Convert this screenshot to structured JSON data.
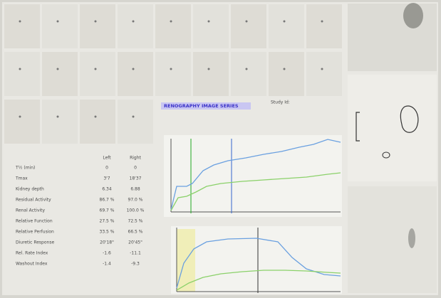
{
  "header": {
    "title": "RENOGRAPHY IMAGE SERIES",
    "study_id": "Study Id:"
  },
  "table": {
    "columns": [
      "Left",
      "Right"
    ],
    "rows": [
      [
        "T½ (min)",
        "0",
        "0"
      ],
      [
        "Tmax",
        "3'7",
        "18'37"
      ],
      [
        "Kidney depth",
        "6.34",
        "6.88"
      ],
      [
        "Residual Activity",
        "86.7 %",
        "97.0 %"
      ],
      [
        "Renal Activity",
        "69.7 %",
        "100.0 %"
      ],
      [
        "Relative Function",
        "27.5 %",
        "72.5 %"
      ],
      [
        "Relative Perfusion",
        "33.5 %",
        "66.5 %"
      ],
      [
        "Diuretic Response",
        "20'18\"",
        "20'45\""
      ],
      [
        "Rel. Rate Index",
        "-1.6",
        "-11.1"
      ],
      [
        "Washout Index",
        "-1.4",
        "-9.3"
      ]
    ]
  }
}
